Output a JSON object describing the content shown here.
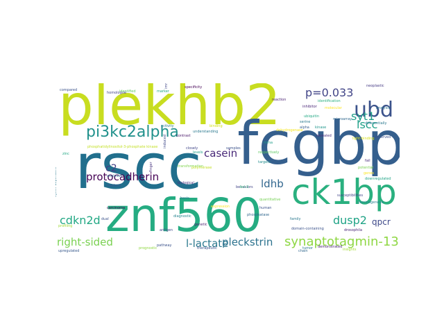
{
  "words": [
    {
      "text": "plekhb2",
      "color": "#c8dd20"
    },
    {
      "text": "rscc",
      "color": "#216f8d"
    },
    {
      "text": "fcgbp",
      "color": "#355f8d"
    },
    {
      "text": "znf560",
      "color": "#25ac82"
    },
    {
      "text": "ck1bp",
      "color": "#2ab07f"
    },
    {
      "text": "pi3kc2alpha",
      "color": "#21918c"
    },
    {
      "text": "ubd",
      "color": "#3b528b"
    },
    {
      "text": "p=0.033",
      "color": "#414487"
    },
    {
      "text": "protocadherin",
      "color": "#440154"
    },
    {
      "text": "synaptotagmin-13",
      "color": "#8fd744"
    },
    {
      "text": "casein",
      "color": "#482878"
    },
    {
      "text": "right-sided",
      "color": "#7ad151"
    },
    {
      "text": "l-lactate",
      "color": "#2a788e"
    },
    {
      "text": "cdkn2d",
      "color": "#22a884"
    },
    {
      "text": "dusp2",
      "color": "#20a386"
    },
    {
      "text": "pleckstrin",
      "color": "#2c728e"
    },
    {
      "text": "syt1",
      "color": "#1f9e89"
    },
    {
      "text": "lscc",
      "color": "#1fa088"
    },
    {
      "text": "ldhb",
      "color": "#31668e"
    },
    {
      "text": "c2",
      "color": "#433e85"
    },
    {
      "text": "qpcr",
      "color": "#3e4989"
    },
    {
      "text": "compared",
      "color": "#3b528b"
    },
    {
      "text": "identified",
      "color": "#5ec962"
    },
    {
      "text": "specificity",
      "color": "#440154"
    },
    {
      "text": "reaction",
      "color": "#481f70"
    },
    {
      "text": "identification",
      "color": "#29af7f"
    },
    {
      "text": "molecular",
      "color": "#fde725"
    },
    {
      "text": "neoplastic",
      "color": "#443983"
    },
    {
      "text": "analysis",
      "color": "#2c728e"
    },
    {
      "text": "inhibitor",
      "color": "#482475"
    },
    {
      "text": "ubiquitin",
      "color": "#22a884"
    },
    {
      "text": "microarray",
      "color": "#31688e"
    },
    {
      "text": "understanding",
      "color": "#2a788e"
    },
    {
      "text": "contrast",
      "color": "#481668"
    },
    {
      "text": "closely",
      "color": "#404688"
    },
    {
      "text": "levels",
      "color": "#1f9e89"
    },
    {
      "text": "targets",
      "color": "#228d8d"
    },
    {
      "text": "revealed",
      "color": "#472d7b"
    },
    {
      "text": "differentially",
      "color": "#2a788e"
    },
    {
      "text": "observed",
      "color": "#3b528b"
    },
    {
      "text": "transformation",
      "color": "#7fd34e"
    },
    {
      "text": "biological",
      "color": "#46307e"
    },
    {
      "text": "analyses",
      "color": "#31688e"
    },
    {
      "text": "quantitative",
      "color": "#75d054"
    },
    {
      "text": "downregulated",
      "color": "#20a486"
    },
    {
      "text": "markers",
      "color": "#3a548c"
    },
    {
      "text": "behaviors",
      "color": "#414487"
    },
    {
      "text": "phosphatase",
      "color": "#31688e"
    },
    {
      "text": "human",
      "color": "#3b528b"
    },
    {
      "text": "cancer",
      "color": "#6ece58"
    },
    {
      "text": "basis",
      "color": "#2c728e"
    },
    {
      "text": "carcinoma",
      "color": "#440154"
    },
    {
      "text": "genetic",
      "color": "#481a6c"
    },
    {
      "text": "family",
      "color": "#2a788e"
    },
    {
      "text": "domain-containing",
      "color": "#3b528b"
    },
    {
      "text": "demonstrated",
      "color": "#482071"
    },
    {
      "text": "insights",
      "color": "#a5db36"
    },
    {
      "text": "upregulated",
      "color": "#38598c"
    },
    {
      "text": "profiling",
      "color": "#a0da39"
    },
    {
      "text": "therapeutic",
      "color": "#3b528b"
    },
    {
      "text": "tumor",
      "color": "#2a788e"
    },
    {
      "text": "dual",
      "color": "#3b528b"
    },
    {
      "text": "drosophila",
      "color": "#482475"
    },
    {
      "text": "chain",
      "color": "#31688e"
    },
    {
      "text": "susceptibilities",
      "color": "#404688"
    },
    {
      "text": "cyclin-dependent",
      "color": "#2a788e"
    },
    {
      "text": "phosphatidylinositol-3-phosphate kinase",
      "color": "#c2df23"
    },
    {
      "text": "homologue",
      "color": "#414487"
    },
    {
      "text": "zinc",
      "color": "#22a884"
    },
    {
      "text": "alpha",
      "color": "#355f8d"
    },
    {
      "text": "serine",
      "color": "#2a788e"
    },
    {
      "text": "kinase",
      "color": "#1f968b"
    },
    {
      "text": "induced",
      "color": "#3e4989"
    },
    {
      "text": "polymerase",
      "color": "#c2df23"
    },
    {
      "text": "prognostic",
      "color": "#90d743"
    },
    {
      "text": "expression",
      "color": "#fde725"
    },
    {
      "text": "binding",
      "color": "#d2e21b"
    },
    {
      "text": "finger",
      "color": "#46327e"
    },
    {
      "text": "diagnostic",
      "color": "#25848e"
    },
    {
      "text": "antigen",
      "color": "#3e4989"
    },
    {
      "text": "light-binding",
      "color": "#d8e219"
    },
    {
      "text": "dehydrogenase",
      "color": "#f6e620"
    },
    {
      "text": "bcl-2",
      "color": "#35b779"
    },
    {
      "text": "potential",
      "color": "#7ad151"
    },
    {
      "text": "pathway",
      "color": "#3b528b"
    },
    {
      "text": "carcinogenesis",
      "color": "#26828e"
    },
    {
      "text": "marker",
      "color": "#22a884"
    },
    {
      "text": "immunohistochemical",
      "color": "#404688"
    },
    {
      "text": "respectively",
      "color": "#5ec962"
    },
    {
      "text": "fail",
      "color": "#472c7a"
    },
    {
      "text": "samples",
      "color": "#3b528b"
    },
    {
      "text": "activity",
      "color": "#2a788e"
    },
    {
      "text": "genes",
      "color": "#fde725"
    },
    {
      "text": "mrna",
      "color": "#1f9e89"
    }
  ]
}
